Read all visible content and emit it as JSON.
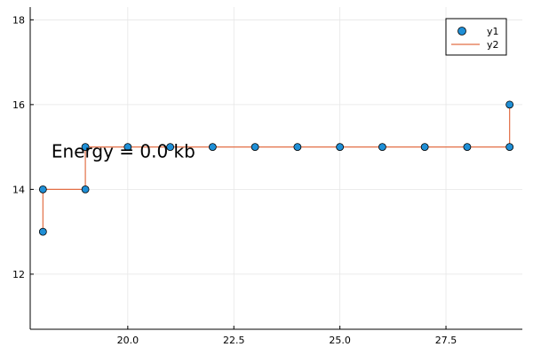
{
  "chart_data": {
    "type": "scatter",
    "xlim": [
      17.7,
      29.3
    ],
    "ylim": [
      10.7,
      18.3
    ],
    "xticks": [
      "20.0",
      "22.5",
      "25.0",
      "27.5"
    ],
    "xtick_values": [
      20.0,
      22.5,
      25.0,
      27.5
    ],
    "yticks": [
      "12",
      "14",
      "16",
      "18"
    ],
    "ytick_values": [
      12,
      14,
      16,
      18
    ],
    "grid": true,
    "legend_position": "top-right",
    "series": [
      {
        "name": "y1",
        "kind": "scatter",
        "color": "#1f8fd6",
        "points": [
          [
            18,
            13
          ],
          [
            18,
            14
          ],
          [
            19,
            14
          ],
          [
            19,
            15
          ],
          [
            20,
            15
          ],
          [
            21,
            15
          ],
          [
            22,
            15
          ],
          [
            23,
            15
          ],
          [
            24,
            15
          ],
          [
            25,
            15
          ],
          [
            26,
            15
          ],
          [
            27,
            15
          ],
          [
            28,
            15
          ],
          [
            29,
            15
          ],
          [
            29,
            16
          ]
        ]
      },
      {
        "name": "y2",
        "kind": "line",
        "color": "#e26f46",
        "points": [
          [
            18,
            13
          ],
          [
            18,
            14
          ],
          [
            19,
            14
          ],
          [
            19,
            15
          ],
          [
            20,
            15
          ],
          [
            21,
            15
          ],
          [
            22,
            15
          ],
          [
            23,
            15
          ],
          [
            24,
            15
          ],
          [
            25,
            15
          ],
          [
            26,
            15
          ],
          [
            27,
            15
          ],
          [
            28,
            15
          ],
          [
            29,
            15
          ],
          [
            29,
            16
          ]
        ]
      }
    ],
    "annotation": {
      "text": "Energy = 0.0 kb",
      "x": 18.2,
      "y": 14.9
    }
  }
}
